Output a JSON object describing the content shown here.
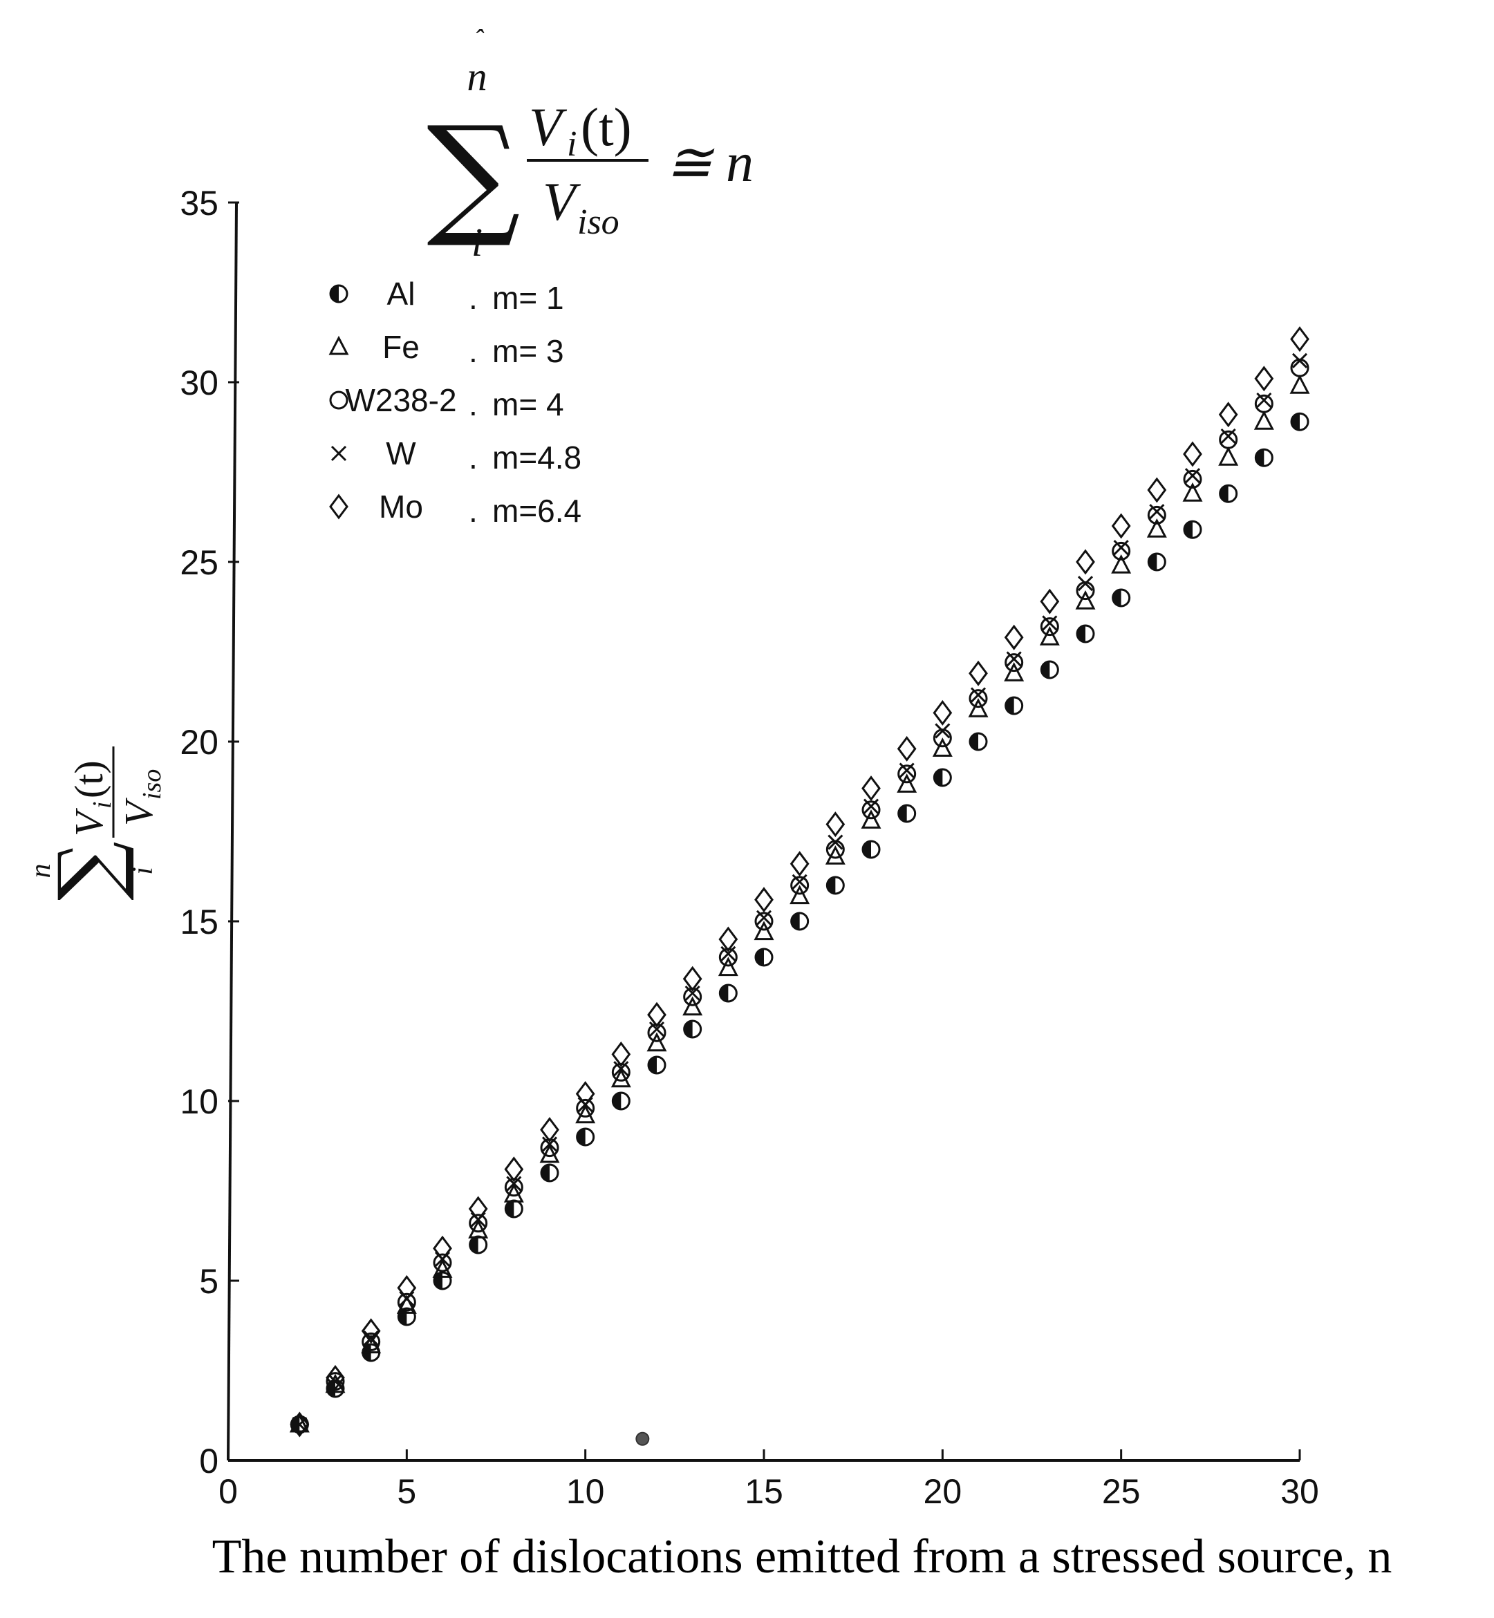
{
  "chart_data": {
    "type": "scatter",
    "title_formula": {
      "sum_upper": "n",
      "sum_lower": "i",
      "numerator": "V",
      "numerator_sub": "i",
      "numerator_arg": "(t)",
      "denominator": "V",
      "denominator_sub": "iso",
      "relation": "≅ n"
    },
    "xlabel": "The number of dislocations emitted from a stressed source, n",
    "ylabel_formula": {
      "sum_upper": "n",
      "sum_lower": "i",
      "numerator": "V",
      "numerator_sub": "i",
      "numerator_arg": "(t)",
      "denominator": "V",
      "denominator_sub": "iso"
    },
    "xlim": [
      0,
      30
    ],
    "ylim": [
      0,
      35
    ],
    "x_ticks": [
      "0",
      "5",
      "10",
      "15",
      "20",
      "25",
      "30"
    ],
    "y_ticks": [
      "0",
      "5",
      "10",
      "15",
      "20",
      "25",
      "30",
      "35"
    ],
    "legend_placement": "top-left",
    "series": [
      {
        "name": "Al",
        "param": "m= 1",
        "marker": "half-filled-circle",
        "x": [
          2,
          3,
          4,
          5,
          6,
          7,
          8,
          9,
          10,
          11,
          12,
          13,
          14,
          15,
          16,
          17,
          18,
          19,
          20,
          21,
          22,
          23,
          24,
          25,
          26,
          27,
          28,
          29,
          30
        ],
        "y": [
          1.0,
          2.0,
          3.0,
          4.0,
          5.0,
          6.0,
          7.0,
          8.0,
          9.0,
          10.0,
          11.0,
          12.0,
          13.0,
          14.0,
          15.0,
          16.0,
          17.0,
          18.0,
          19.0,
          20.0,
          21.0,
          22.0,
          23.0,
          24.0,
          25.0,
          25.9,
          26.9,
          27.9,
          28.9
        ]
      },
      {
        "name": "Fe",
        "param": "m= 3",
        "marker": "triangle",
        "x": [
          2,
          3,
          4,
          5,
          6,
          7,
          8,
          9,
          10,
          11,
          12,
          13,
          14,
          15,
          16,
          17,
          18,
          19,
          20,
          21,
          22,
          23,
          24,
          25,
          26,
          27,
          28,
          29,
          30
        ],
        "y": [
          1.0,
          2.1,
          3.2,
          4.3,
          5.3,
          6.4,
          7.4,
          8.5,
          9.6,
          10.6,
          11.6,
          12.6,
          13.7,
          14.7,
          15.7,
          16.8,
          17.8,
          18.8,
          19.8,
          20.9,
          21.9,
          22.9,
          23.9,
          24.9,
          25.9,
          26.9,
          27.9,
          28.9,
          29.9
        ]
      },
      {
        "name": "W238-2",
        "param": "m= 4",
        "marker": "circle",
        "x": [
          2,
          3,
          4,
          5,
          6,
          7,
          8,
          9,
          10,
          11,
          12,
          13,
          14,
          15,
          16,
          17,
          18,
          19,
          20,
          21,
          22,
          23,
          24,
          25,
          26,
          27,
          28,
          29,
          30
        ],
        "y": [
          1.0,
          2.2,
          3.3,
          4.4,
          5.5,
          6.6,
          7.6,
          8.7,
          9.8,
          10.8,
          11.9,
          12.9,
          14.0,
          15.0,
          16.0,
          17.0,
          18.1,
          19.1,
          20.1,
          21.2,
          22.2,
          23.2,
          24.2,
          25.3,
          26.3,
          27.3,
          28.4,
          29.4,
          30.4
        ]
      },
      {
        "name": "W",
        "param": "m=4.8",
        "marker": "x",
        "x": [
          2,
          3,
          4,
          5,
          6,
          7,
          8,
          9,
          10,
          11,
          12,
          13,
          14,
          15,
          16,
          17,
          18,
          19,
          20,
          21,
          22,
          23,
          24,
          25,
          26,
          27,
          28,
          29,
          30
        ],
        "y": [
          1.0,
          2.2,
          3.4,
          4.5,
          5.6,
          6.7,
          7.7,
          8.8,
          9.9,
          10.9,
          12.0,
          13.0,
          14.1,
          15.1,
          16.1,
          17.2,
          18.2,
          19.2,
          20.3,
          21.3,
          22.3,
          23.3,
          24.4,
          25.4,
          26.4,
          27.4,
          28.5,
          29.5,
          30.6
        ]
      },
      {
        "name": "Mo",
        "param": "m=6.4",
        "marker": "diamond",
        "x": [
          2,
          3,
          4,
          5,
          6,
          7,
          8,
          9,
          10,
          11,
          12,
          13,
          14,
          15,
          16,
          17,
          18,
          19,
          20,
          21,
          22,
          23,
          24,
          25,
          26,
          27,
          28,
          29,
          30
        ],
        "y": [
          1.0,
          2.3,
          3.6,
          4.8,
          5.9,
          7.0,
          8.1,
          9.2,
          10.2,
          11.3,
          12.4,
          13.4,
          14.5,
          15.6,
          16.6,
          17.7,
          18.7,
          19.8,
          20.8,
          21.9,
          22.9,
          23.9,
          25.0,
          26.0,
          27.0,
          28.0,
          29.1,
          30.1,
          31.2
        ]
      }
    ],
    "stray_points": [
      {
        "x": 11.6,
        "y": 0.6
      }
    ]
  }
}
